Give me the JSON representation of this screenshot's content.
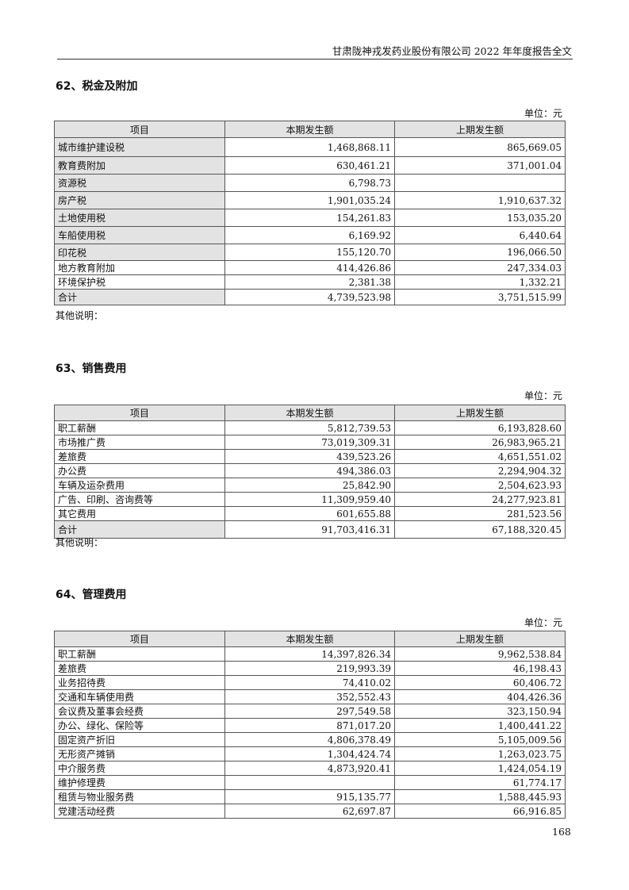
{
  "header": {
    "title": "甘肃陇神戎发药业股份有限公司 2022 年年度报告全文"
  },
  "columns": [
    "项目",
    "本期发生额",
    "上期发生额"
  ],
  "unit_label": "单位：元",
  "note_label": "其他说明：",
  "sections": [
    {
      "title": "62、税金及附加",
      "rows": [
        [
          "城市维护建设税",
          "1,468,868.11",
          "865,669.05"
        ],
        [
          "教育费附加",
          "630,461.21",
          "371,001.04"
        ],
        [
          "资源税",
          "6,798.73",
          ""
        ],
        [
          "房产税",
          "1,901,035.24",
          "1,910,637.32"
        ],
        [
          "土地使用税",
          "154,261.83",
          "153,035.20"
        ],
        [
          "车船使用税",
          "6,169.92",
          "6,440.64"
        ],
        [
          "印花税",
          "155,120.70",
          "196,066.50"
        ],
        [
          "地方教育附加",
          "414,426.86",
          "247,334.03"
        ],
        [
          "环境保护税",
          "2,381.38",
          "1,332.21"
        ],
        [
          "合计",
          "4,739,523.98",
          "3,751,515.99"
        ]
      ]
    },
    {
      "title": "63、销售费用",
      "rows": [
        [
          "职工薪酬",
          "5,812,739.53",
          "6,193,828.60"
        ],
        [
          "市场推广费",
          "73,019,309.31",
          "26,983,965.21"
        ],
        [
          "差旅费",
          "439,523.26",
          "4,651,551.02"
        ],
        [
          "办公费",
          "494,386.03",
          "2,294,904.32"
        ],
        [
          "车辆及运杂费用",
          "25,842.90",
          "2,504,623.93"
        ],
        [
          "广告、印刷、咨询费等",
          "11,309,959.40",
          "24,277,923.81"
        ],
        [
          "其它费用",
          "601,655.88",
          "281,523.56"
        ],
        [
          "合计",
          "91,703,416.31",
          "67,188,320.45"
        ]
      ]
    },
    {
      "title": "64、管理费用",
      "rows": [
        [
          "职工薪酬",
          "14,397,826.34",
          "9,962,538.84"
        ],
        [
          "差旅费",
          "219,993.39",
          "46,198.43"
        ],
        [
          "业务招待费",
          "74,410.02",
          "60,406.72"
        ],
        [
          "交通和车辆使用费",
          "352,552.43",
          "404,426.36"
        ],
        [
          "会议费及董事会经费",
          "297,549.58",
          "323,150.94"
        ],
        [
          "办公、绿化、保险等",
          "871,017.20",
          "1,400,441.22"
        ],
        [
          "固定资产折旧",
          "4,806,378.49",
          "5,105,009.56"
        ],
        [
          "无形资产摊销",
          "1,304,424.74",
          "1,263,023.75"
        ],
        [
          "中介服务费",
          "4,873,920.41",
          "1,424,054.19"
        ],
        [
          "维护修理费",
          "",
          "61,774.17"
        ],
        [
          "租赁与物业服务费",
          "915,135.77",
          "1,588,445.93"
        ],
        [
          "党建活动经费",
          "62,697.87",
          "66,916.85"
        ]
      ]
    }
  ],
  "page_number": "168"
}
